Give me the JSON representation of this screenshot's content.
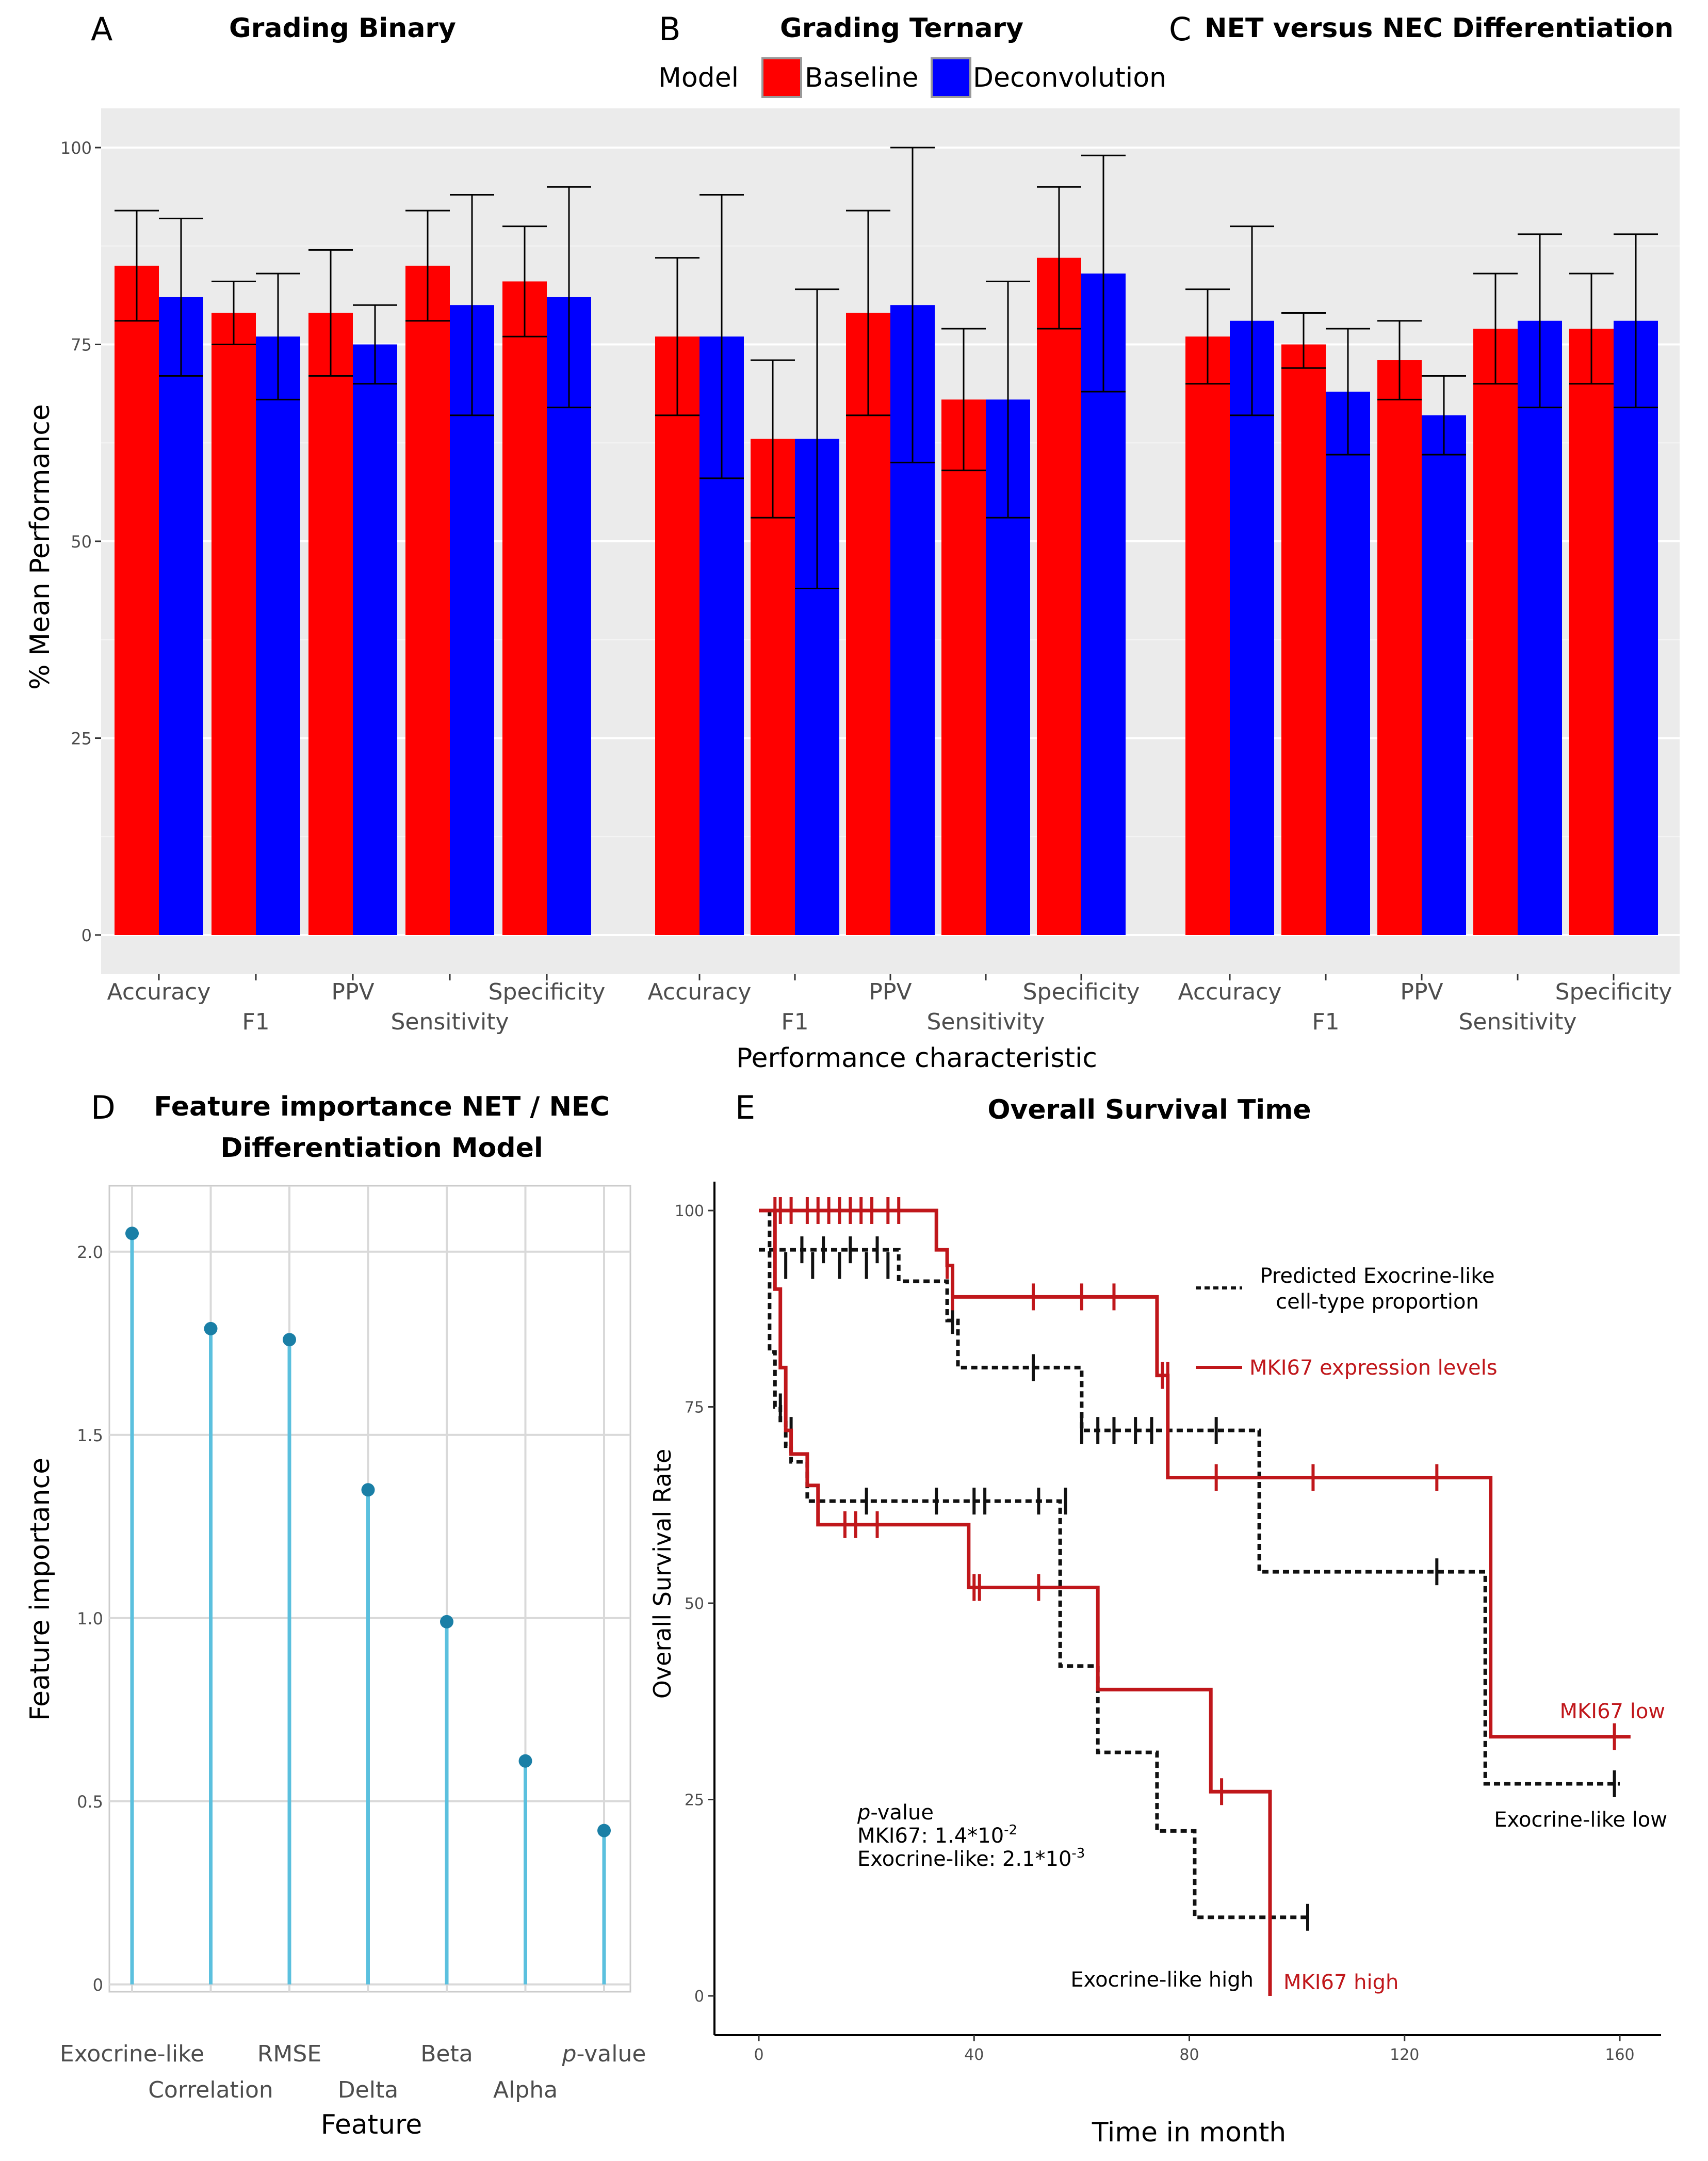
{
  "colors": {
    "baseline": "#ff0000",
    "deconvolution": "#0000ff",
    "panel_bg": "#ebebeb",
    "grid_major": "#ffffff",
    "lollipop": "#5bc0de",
    "lollipop_dot": "#1a7fa6",
    "km_red": "#c0171b",
    "km_black": "#111111"
  },
  "legend": {
    "title": "Model",
    "items": [
      "Baseline",
      "Deconvolution"
    ]
  },
  "chart_data": [
    {
      "type": "bar",
      "panel": "A",
      "title": "Grading Binary",
      "categories": [
        "Accuracy",
        "F1",
        "PPV",
        "Sensitivity",
        "Specificity"
      ],
      "series": [
        {
          "name": "Baseline",
          "values": [
            85,
            79,
            79,
            85,
            83
          ],
          "err_low": [
            78,
            75,
            71,
            78,
            76
          ],
          "err_high": [
            92,
            83,
            87,
            92,
            90
          ]
        },
        {
          "name": "Deconvolution",
          "values": [
            81,
            76,
            75,
            80,
            81
          ],
          "err_low": [
            71,
            68,
            70,
            66,
            67
          ],
          "err_high": [
            91,
            84,
            80,
            94,
            95
          ]
        }
      ],
      "ylim": [
        0,
        105
      ],
      "yticks": [
        "0",
        "25",
        "50",
        "75",
        "100"
      ],
      "ylabel": "% Mean Performance"
    },
    {
      "type": "bar",
      "panel": "B",
      "title": "Grading Ternary",
      "categories": [
        "Accuracy",
        "F1",
        "PPV",
        "Sensitivity",
        "Specificity"
      ],
      "series": [
        {
          "name": "Baseline",
          "values": [
            76,
            63,
            79,
            68,
            86
          ],
          "err_low": [
            66,
            53,
            66,
            59,
            77
          ],
          "err_high": [
            86,
            73,
            92,
            77,
            95
          ]
        },
        {
          "name": "Deconvolution",
          "values": [
            76,
            63,
            80,
            68,
            84
          ],
          "err_low": [
            58,
            44,
            60,
            53,
            69
          ],
          "err_high": [
            94,
            82,
            100,
            83,
            99
          ]
        }
      ],
      "ylim": [
        0,
        105
      ]
    },
    {
      "type": "bar",
      "panel": "C",
      "title": "NET versus NEC Differentiation",
      "categories": [
        "Accuracy",
        "F1",
        "PPV",
        "Sensitivity",
        "Specificity"
      ],
      "series": [
        {
          "name": "Baseline",
          "values": [
            76,
            75,
            73,
            77,
            77
          ],
          "err_low": [
            70,
            72,
            68,
            70,
            70
          ],
          "err_high": [
            82,
            79,
            78,
            84,
            84
          ]
        },
        {
          "name": "Deconvolution",
          "values": [
            78,
            69,
            66,
            78,
            78
          ],
          "err_low": [
            66,
            61,
            61,
            67,
            67
          ],
          "err_high": [
            90,
            77,
            71,
            89,
            89
          ]
        }
      ],
      "ylim": [
        0,
        105
      ],
      "xlabel": "Performance characteristic"
    },
    {
      "type": "lollipop",
      "panel": "D",
      "title_line1": "Feature importance NET / NEC",
      "title_line2": "Differentiation Model",
      "categories": [
        "Exocrine-like",
        "Correlation",
        "RMSE",
        "Delta",
        "Beta",
        "Alpha",
        "p-value"
      ],
      "values": [
        2.05,
        1.79,
        1.76,
        1.35,
        0.99,
        0.61,
        0.42
      ],
      "ylim": [
        -0.02,
        2.18
      ],
      "yticks": [
        "0",
        "0.5",
        "1.0",
        "1.5",
        "2.0"
      ],
      "xlabel": "Feature",
      "ylabel": "Feature importance"
    },
    {
      "type": "line",
      "panel": "E",
      "title": "Overall Survival Time",
      "xlabel": "Time in month",
      "ylabel": "Overall Survival Rate",
      "xlim": [
        -4,
        168
      ],
      "ylim": [
        -1,
        102
      ],
      "xticks": [
        "0",
        "40",
        "80",
        "120",
        "160"
      ],
      "yticks": [
        "0",
        "25",
        "50",
        "75",
        "100"
      ],
      "series": [
        {
          "name": "Exocrine-like low",
          "style": "dashed",
          "color": "black",
          "x": [
            0,
            3,
            26,
            35,
            37,
            60,
            93,
            135,
            160
          ],
          "y": [
            95,
            95,
            91,
            86,
            80,
            72,
            54,
            27,
            27
          ],
          "censor_x": [
            3,
            5,
            8,
            10,
            12,
            15,
            17,
            20,
            22,
            24,
            36,
            51,
            60,
            63,
            66,
            70,
            73,
            76,
            85,
            126,
            159
          ],
          "censor_y": [
            95,
            93,
            95,
            93,
            95,
            93,
            95,
            93,
            95,
            93,
            86,
            80,
            72,
            72,
            72,
            72,
            72,
            72,
            72,
            54,
            27
          ]
        },
        {
          "name": "Exocrine-like high",
          "style": "dashed",
          "color": "black",
          "x": [
            0,
            2,
            3,
            4,
            5,
            6,
            8,
            9,
            11,
            56,
            63,
            74,
            81,
            102
          ],
          "y": [
            100,
            82,
            75,
            73,
            70,
            68,
            68,
            63,
            63,
            42,
            31,
            21,
            10,
            10
          ],
          "censor_x": [
            4,
            5,
            6,
            20,
            33,
            40,
            42,
            52,
            57,
            102
          ],
          "censor_y": [
            75,
            75,
            72,
            63,
            63,
            63,
            63,
            63,
            63,
            10
          ]
        },
        {
          "name": "MKI67 low",
          "style": "solid",
          "color": "red",
          "x": [
            0,
            33,
            35,
            36,
            60,
            74,
            76,
            136,
            162
          ],
          "y": [
            100,
            95,
            93,
            89,
            89,
            79,
            66,
            33,
            33
          ],
          "censor_x": [
            3,
            4,
            6,
            9,
            11,
            13,
            15,
            17,
            19,
            21,
            24,
            26,
            35,
            36,
            51,
            60,
            66,
            75,
            76,
            85,
            103,
            126,
            159
          ],
          "censor_y": [
            100,
            100,
            100,
            100,
            100,
            100,
            100,
            100,
            100,
            100,
            100,
            100,
            93,
            89,
            89,
            89,
            89,
            79,
            79,
            66,
            66,
            66,
            33
          ]
        },
        {
          "name": "MKI67 high",
          "style": "solid",
          "color": "red",
          "x": [
            0,
            3,
            4,
            5,
            6,
            9,
            11,
            39,
            63,
            84,
            95
          ],
          "y": [
            100,
            90,
            80,
            72,
            69,
            65,
            60,
            52,
            39,
            26,
            0
          ],
          "censor_x": [
            16,
            18,
            22,
            40,
            41,
            52,
            86
          ],
          "censor_y": [
            60,
            60,
            60,
            52,
            52,
            52,
            26
          ]
        }
      ],
      "legend": [
        {
          "label_line1": "Predicted Exocrine-like",
          "label_line2": "cell-type proportion",
          "style": "dashed"
        },
        {
          "label_line1": "MKI67 expression levels",
          "style": "solid"
        }
      ],
      "annotations": {
        "pvalue_italic": "p",
        "pvalue_rest": "-value",
        "mki67_text": "MKI67: 1.4*10",
        "mki67_exp": "-2",
        "exo_text": "Exocrine-like: 2.1*10",
        "exo_exp": "-3",
        "mki67_low": "MKI67 low",
        "exo_low": "Exocrine-like low",
        "exo_high": "Exocrine-like high",
        "mki67_high": "MKI67 high"
      }
    }
  ],
  "panel_letters": [
    "A",
    "B",
    "C",
    "D",
    "E"
  ]
}
